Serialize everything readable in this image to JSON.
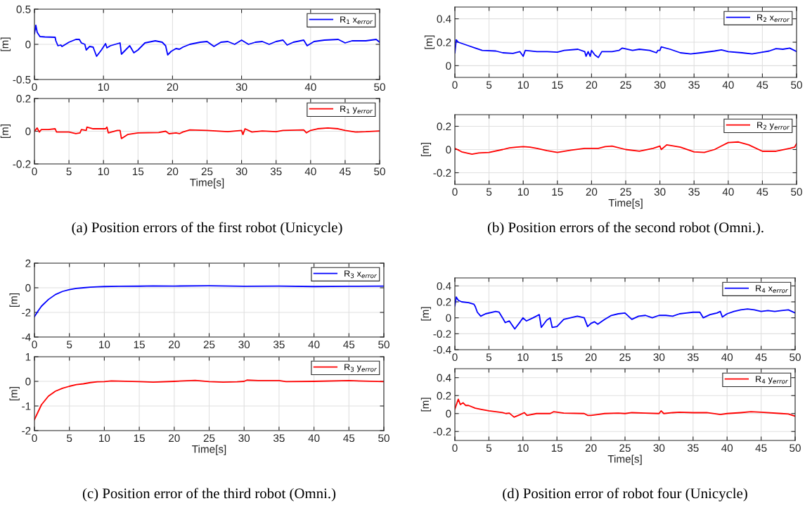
{
  "chart_data": [
    {
      "type": "line",
      "xlim": [
        0,
        50
      ],
      "xticks": [
        0,
        10,
        20,
        30,
        40,
        50
      ],
      "ylim": [
        -0.5,
        0.5
      ],
      "yticks": [
        -0.5,
        0,
        0.5
      ],
      "ylabel": "[m]",
      "grid": true,
      "legend": "top right",
      "series": [
        {
          "name": "R$_{1}$ x$_{error}$",
          "color": "#0000ff",
          "x": [
            0,
            0.2,
            0.4,
            0.8,
            1.5,
            3,
            3.1,
            3.4,
            3.8,
            4,
            5,
            6,
            6.5,
            6.8,
            7.3,
            7.5,
            8,
            8.5,
            9,
            9.7,
            10.3,
            10.5,
            11,
            12.4,
            12.6,
            13,
            13.8,
            14.4,
            15,
            16,
            17,
            17.5,
            18.5,
            19,
            19.3,
            19.8,
            20.5,
            21,
            21.5,
            22.5,
            24,
            25,
            26,
            27,
            28,
            29,
            30,
            31,
            32,
            33,
            34,
            35,
            36,
            36.6,
            37.5,
            39,
            39.5,
            40.5,
            42,
            44,
            45,
            46,
            48,
            49.5,
            50
          ],
          "values": [
            0.15,
            0.27,
            0.17,
            0.11,
            0.105,
            0.1,
            0.05,
            -0.02,
            -0.01,
            -0.03,
            0.03,
            0.07,
            0.07,
            0.02,
            0.0,
            -0.08,
            -0.03,
            -0.04,
            -0.17,
            -0.08,
            0.01,
            -0.05,
            -0.02,
            0.02,
            -0.14,
            -0.1,
            -0.02,
            -0.12,
            -0.08,
            0.02,
            0.04,
            0.05,
            0.03,
            -0.02,
            -0.15,
            -0.1,
            -0.06,
            -0.07,
            -0.04,
            0.0,
            0.03,
            0.04,
            -0.03,
            0.03,
            0.04,
            0.0,
            0.06,
            0.0,
            0.03,
            0.04,
            0.0,
            0.04,
            0.06,
            -0.01,
            0.03,
            0.06,
            -0.02,
            0.04,
            0.06,
            0.07,
            0.02,
            0.05,
            0.05,
            0.07,
            0.03
          ]
        }
      ]
    },
    {
      "type": "line",
      "xlim": [
        0,
        50
      ],
      "xticks": [
        0,
        5,
        10,
        15,
        20,
        25,
        30,
        35,
        40,
        45,
        50
      ],
      "ylim": [
        -0.2,
        0.2
      ],
      "yticks": [
        -0.2,
        0,
        0.2
      ],
      "ylabel": "[m]",
      "xlabel": "Time[s]",
      "grid": true,
      "legend": "top right",
      "annotations": [
        "(a) Position errors of the first robot (Unicycle)"
      ],
      "series": [
        {
          "name": "R$_{1}$ y$_{error}$",
          "color": "#ff0000",
          "x": [
            0,
            0.4,
            0.7,
            1,
            2,
            3,
            3.2,
            5,
            6,
            6.6,
            6.8,
            7.5,
            7.6,
            8.5,
            10.3,
            10.5,
            10.7,
            12,
            12.4,
            12.6,
            13.5,
            15,
            18,
            19,
            19.5,
            20.5,
            21,
            21.5,
            22.5,
            25,
            28,
            30,
            30.2,
            30.5,
            31.5,
            33,
            35,
            36,
            39,
            39.4,
            40,
            41,
            42.5,
            44,
            45,
            46.5,
            48,
            50
          ],
          "values": [
            0,
            0.02,
            -0.005,
            0.01,
            0.01,
            0.015,
            -0.005,
            -0.005,
            -0.015,
            -0.01,
            0.01,
            0.005,
            0.025,
            0.015,
            0.015,
            0.025,
            -0.01,
            0.005,
            0.005,
            -0.045,
            -0.02,
            -0.01,
            -0.008,
            0.0,
            -0.015,
            -0.01,
            -0.015,
            -0.005,
            0.008,
            0.005,
            -0.003,
            0.005,
            -0.02,
            0.015,
            -0.005,
            0.002,
            -0.003,
            0.005,
            0.008,
            -0.01,
            0.005,
            0.015,
            0.02,
            0.015,
            0.005,
            -0.005,
            -0.003,
            0.002
          ]
        }
      ]
    },
    {
      "type": "line",
      "xlim": [
        0,
        50
      ],
      "xticks": [
        0,
        5,
        10,
        15,
        20,
        25,
        30,
        35,
        40,
        45,
        50
      ],
      "ylim": [
        -0.1,
        0.5
      ],
      "yticks": [
        0,
        0.2,
        0.4
      ],
      "ylabel": "[m]",
      "grid": true,
      "legend": "top right",
      "series": [
        {
          "name": "R$_{2}$ x$_{error}$",
          "color": "#0000ff",
          "x": [
            0,
            0.2,
            0.5,
            2,
            3,
            4,
            6,
            7,
            8.5,
            9.5,
            10,
            10.3,
            12,
            13.5,
            15,
            16,
            18,
            19,
            19.2,
            19.5,
            19.8,
            20,
            20.5,
            21,
            21.5,
            23,
            24,
            24.5,
            26,
            27,
            28.5,
            29.5,
            29.7,
            30,
            30.2,
            31.5,
            33,
            34.5,
            36,
            38,
            39,
            40,
            42,
            43.5,
            45,
            46,
            47,
            48,
            49,
            50
          ],
          "values": [
            0.11,
            0.22,
            0.2,
            0.17,
            0.15,
            0.13,
            0.125,
            0.11,
            0.105,
            0.12,
            0.08,
            0.13,
            0.12,
            0.12,
            0.115,
            0.13,
            0.14,
            0.12,
            0.08,
            0.12,
            0.08,
            0.13,
            0.09,
            0.07,
            0.12,
            0.12,
            0.13,
            0.15,
            0.13,
            0.14,
            0.13,
            0.11,
            0.13,
            0.13,
            0.16,
            0.14,
            0.11,
            0.1,
            0.11,
            0.125,
            0.135,
            0.12,
            0.11,
            0.1,
            0.115,
            0.125,
            0.145,
            0.14,
            0.15,
            0.12
          ]
        }
      ]
    },
    {
      "type": "line",
      "xlim": [
        0,
        50
      ],
      "xticks": [
        0,
        5,
        10,
        15,
        20,
        25,
        30,
        35,
        40,
        45,
        50
      ],
      "ylim": [
        -0.3,
        0.3
      ],
      "yticks": [
        -0.2,
        0,
        0.2
      ],
      "ylabel": "[m]",
      "xlabel": "Time[s]",
      "grid": true,
      "legend": "top right",
      "annotations": [
        "(b) Position errors of the second robot (Omni.)."
      ],
      "series": [
        {
          "name": "R$_{2}$ y$_{error}$",
          "color": "#ff0000",
          "x": [
            0,
            1,
            2.5,
            3.5,
            5,
            7,
            8,
            9,
            10,
            11,
            12,
            13.5,
            15,
            17,
            19,
            21,
            22,
            23,
            25,
            27,
            29,
            30,
            30.2,
            31,
            33,
            35,
            36.5,
            38,
            39,
            40,
            41.5,
            43,
            45,
            47,
            49,
            49.7,
            50
          ],
          "values": [
            0.01,
            -0.02,
            -0.04,
            -0.03,
            -0.025,
            0.0,
            0.015,
            0.02,
            0.025,
            0.02,
            0.01,
            -0.01,
            -0.025,
            -0.005,
            0.01,
            0.01,
            0.025,
            0.03,
            0.0,
            -0.015,
            0.01,
            0.03,
            0.0,
            0.04,
            0.02,
            -0.02,
            -0.025,
            0.0,
            0.03,
            0.06,
            0.065,
            0.04,
            -0.015,
            -0.015,
            0.01,
            0.02,
            0.05
          ]
        }
      ]
    },
    {
      "type": "line",
      "xlim": [
        0,
        50
      ],
      "xticks": [
        0,
        5,
        10,
        15,
        20,
        25,
        30,
        35,
        40,
        45,
        50
      ],
      "ylim": [
        -4,
        2
      ],
      "yticks": [
        -4,
        -2,
        0,
        2
      ],
      "ylabel": "[m]",
      "grid": true,
      "legend": "top right",
      "series": [
        {
          "name": "R$_{3}$ x$_{error}$",
          "color": "#0000ff",
          "x": [
            0,
            0.5,
            1,
            2,
            3,
            4,
            5,
            6,
            7,
            8,
            9,
            10,
            12,
            15,
            17,
            20,
            25,
            30,
            35,
            40,
            45,
            50
          ],
          "values": [
            -2.35,
            -1.9,
            -1.5,
            -0.95,
            -0.55,
            -0.3,
            -0.15,
            -0.05,
            0.0,
            0.05,
            0.08,
            0.1,
            0.12,
            0.13,
            0.15,
            0.14,
            0.16,
            0.12,
            0.14,
            0.1,
            0.12,
            0.14
          ]
        }
      ]
    },
    {
      "type": "line",
      "xlim": [
        0,
        50
      ],
      "xticks": [
        0,
        5,
        10,
        15,
        20,
        25,
        30,
        35,
        40,
        45,
        50
      ],
      "ylim": [
        -2,
        1
      ],
      "yticks": [
        -2,
        -1,
        0,
        1
      ],
      "ylabel": "[m]",
      "xlabel": "Time[s]",
      "grid": true,
      "legend": "top right",
      "annotations": [
        "(c) Position error of the third robot (Omni.)"
      ],
      "series": [
        {
          "name": "R$_{3}$ y$_{error}$",
          "color": "#ff0000",
          "x": [
            0,
            0.5,
            1,
            2,
            3,
            4,
            5,
            6,
            7,
            8,
            9,
            10,
            11,
            15,
            17,
            20,
            23,
            25,
            27,
            29,
            30,
            30.4,
            32,
            35,
            36,
            40,
            45,
            50
          ],
          "values": [
            -1.55,
            -1.25,
            -0.95,
            -0.6,
            -0.4,
            -0.28,
            -0.2,
            -0.13,
            -0.1,
            -0.05,
            -0.02,
            -0.01,
            0.02,
            -0.01,
            -0.03,
            0.0,
            0.04,
            -0.01,
            -0.03,
            -0.02,
            0.0,
            0.05,
            0.03,
            0.03,
            -0.01,
            0.0,
            0.03,
            -0.01
          ]
        }
      ]
    },
    {
      "type": "line",
      "xlim": [
        0,
        50
      ],
      "xticks": [
        0,
        5,
        10,
        15,
        20,
        25,
        30,
        35,
        40,
        45,
        50
      ],
      "ylim": [
        -0.4,
        0.5
      ],
      "yticks": [
        -0.4,
        -0.2,
        0,
        0.2,
        0.4
      ],
      "ylabel": "[m]",
      "grid": true,
      "legend": "top right",
      "series": [
        {
          "name": "R$_{4}$ x$_{error}$",
          "color": "#0000ff",
          "x": [
            0,
            0.2,
            0.5,
            1,
            2,
            2.8,
            3,
            3.3,
            3.8,
            4.5,
            6,
            6.5,
            7,
            7.4,
            8,
            8.8,
            9.6,
            10,
            10.5,
            11.5,
            12.4,
            12.7,
            13.5,
            14,
            14.3,
            15,
            16,
            17,
            18,
            19,
            19.5,
            20,
            20.5,
            21,
            22,
            23,
            24,
            25,
            26,
            27,
            28,
            29,
            30,
            31,
            32,
            33,
            34,
            35,
            36,
            36.5,
            37.5,
            38.5,
            39,
            39.3,
            40,
            41,
            42,
            43,
            44,
            45,
            46,
            47,
            48,
            49,
            50
          ],
          "values": [
            0.15,
            0.26,
            0.22,
            0.2,
            0.19,
            0.17,
            0.14,
            0.07,
            0.02,
            0.05,
            0.08,
            0.07,
            0.0,
            -0.06,
            -0.04,
            -0.14,
            -0.05,
            0.0,
            -0.04,
            0.0,
            0.04,
            -0.12,
            -0.03,
            0.0,
            -0.12,
            -0.11,
            -0.02,
            0.0,
            0.02,
            0.0,
            -0.11,
            -0.07,
            -0.05,
            -0.08,
            -0.02,
            0.03,
            0.05,
            0.06,
            -0.02,
            0.02,
            0.03,
            0.0,
            0.03,
            0.03,
            0.02,
            0.05,
            0.06,
            0.07,
            0.07,
            0.0,
            0.04,
            0.06,
            0.08,
            0.01,
            0.05,
            0.08,
            0.1,
            0.11,
            0.1,
            0.08,
            0.09,
            0.08,
            0.09,
            0.1,
            0.06
          ]
        }
      ]
    },
    {
      "type": "line",
      "xlim": [
        0,
        50
      ],
      "xticks": [
        0,
        5,
        10,
        15,
        20,
        25,
        30,
        35,
        40,
        45,
        50
      ],
      "ylim": [
        -0.3,
        0.5
      ],
      "yticks": [
        -0.2,
        0,
        0.2,
        0.4
      ],
      "ylabel": "[m]",
      "xlabel": "Time[s]",
      "grid": true,
      "legend": "top right",
      "annotations": [
        "(d) Position error of robot four (Unicycle)"
      ],
      "series": [
        {
          "name": "R$_{4}$ y$_{error}$",
          "color": "#ff0000",
          "x": [
            0,
            0.5,
            0.8,
            1.2,
            1.6,
            2,
            3,
            4,
            5,
            6,
            7,
            7.5,
            8,
            8.7,
            9.5,
            10.2,
            10.6,
            12,
            14,
            14.5,
            16,
            19,
            19.5,
            20,
            21,
            22,
            24,
            25,
            26,
            28,
            30,
            30.3,
            30.7,
            32,
            33,
            35,
            37,
            39,
            40,
            42,
            43.5,
            45,
            48,
            49,
            50
          ],
          "values": [
            0.05,
            0.16,
            0.1,
            0.12,
            0.09,
            0.09,
            0.06,
            0.045,
            0.03,
            0.02,
            0.01,
            0.0,
            0.005,
            -0.04,
            -0.015,
            0.01,
            -0.02,
            0.0,
            0.0,
            0.02,
            0.005,
            0.0,
            -0.02,
            -0.02,
            -0.01,
            0.0,
            0.005,
            0.0,
            0.01,
            0.005,
            0.0,
            0.03,
            0.0,
            0.01,
            0.015,
            0.01,
            0.01,
            -0.01,
            0.0,
            0.01,
            0.02,
            0.015,
            0.0,
            -0.005,
            -0.03
          ]
        }
      ]
    }
  ]
}
